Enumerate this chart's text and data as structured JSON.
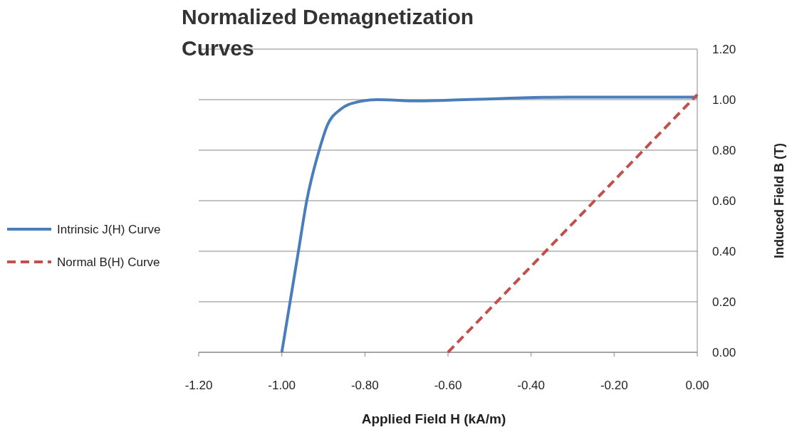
{
  "chart_data": {
    "type": "line",
    "title": "Normalized Demagnetization Curves",
    "xlabel": "Applied Field H (kA/m)",
    "ylabel": "Induced Field B (T)",
    "series": [
      {
        "name": "Intrinsic J(H) Curve",
        "color": "#4a7ebb",
        "line_style": "solid",
        "x": [
          -1.0,
          -0.98,
          -0.96,
          -0.94,
          -0.91,
          -0.89,
          -0.86,
          -0.82,
          -0.77,
          -0.67,
          -0.56,
          -0.31,
          0
        ],
        "values": [
          0,
          0.2,
          0.4,
          0.6,
          0.8,
          0.9,
          0.96,
          0.99,
          1.0,
          0.995,
          1.0,
          1.01,
          1.01
        ]
      },
      {
        "name": "Normal B(H) Curve",
        "color": "#c0504d",
        "line_style": "dashed",
        "x": [
          -0.6,
          0
        ],
        "values": [
          0,
          1.02
        ]
      }
    ],
    "xlim": [
      -1.2,
      0
    ],
    "ylim": [
      0,
      1.2
    ],
    "xticks": [
      {
        "value": -1.2,
        "label": "-1.20"
      },
      {
        "value": -1,
        "label": "-1.00"
      },
      {
        "value": -0.8,
        "label": "-0.80"
      },
      {
        "value": -0.6,
        "label": "-0.60"
      },
      {
        "value": -0.4,
        "label": "-0.40"
      },
      {
        "value": -0.2,
        "label": "-0.20"
      },
      {
        "value": 0,
        "label": "0.00"
      }
    ],
    "yticks": [
      {
        "value": 0,
        "label": "0.00"
      },
      {
        "value": 0.2,
        "label": "0.20"
      },
      {
        "value": 0.4,
        "label": "0.40"
      },
      {
        "value": 0.6,
        "label": "0.60"
      },
      {
        "value": 0.8,
        "label": "0.80"
      },
      {
        "value": 1,
        "label": "1.00"
      },
      {
        "value": 1.2,
        "label": "1.20"
      }
    ],
    "grid": "y",
    "legend": "left"
  }
}
